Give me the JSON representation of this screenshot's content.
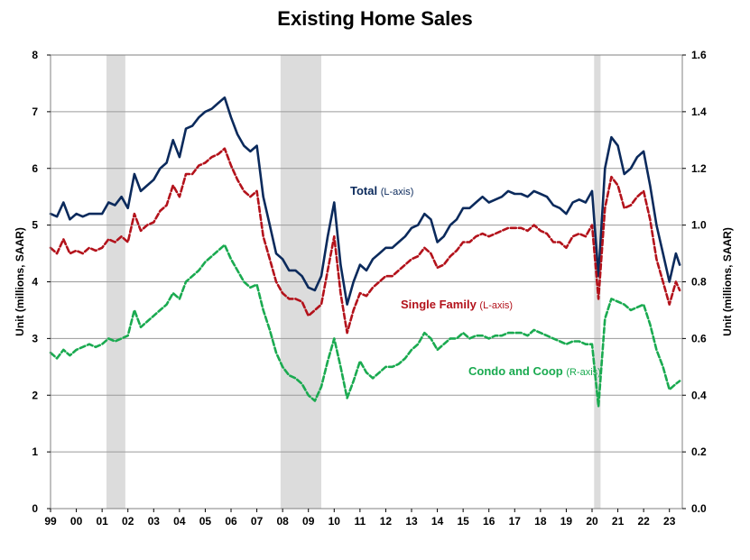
{
  "chart_data": {
    "type": "line",
    "title": "Existing Home Sales",
    "ylabel_left": "Unit (millions, SAAR)",
    "ylabel_right": "Unit (millions, SAAR)",
    "ylim_left": [
      0,
      8
    ],
    "ylim_right": [
      0.0,
      1.6
    ],
    "yticks_left": [
      "0",
      "1",
      "2",
      "3",
      "4",
      "5",
      "6",
      "7",
      "8"
    ],
    "yticks_right": [
      "0.0",
      "0.2",
      "0.4",
      "0.6",
      "0.8",
      "1.0",
      "1.2",
      "1.4",
      "1.6"
    ],
    "xlim": [
      1999.0,
      2023.5
    ],
    "xticks": [
      "99",
      "00",
      "01",
      "02",
      "03",
      "04",
      "05",
      "06",
      "07",
      "08",
      "09",
      "10",
      "11",
      "12",
      "13",
      "14",
      "15",
      "16",
      "17",
      "18",
      "19",
      "20",
      "21",
      "22",
      "23"
    ],
    "grid": "horizontal",
    "recessions": [
      [
        2001.17,
        2001.9
      ],
      [
        2007.92,
        2009.5
      ],
      [
        2020.08,
        2020.33
      ]
    ],
    "series": [
      {
        "name": "Total",
        "axis": "left",
        "color": "#0b2a5c",
        "style": "solid",
        "label": "Total",
        "label_sub": "(L-axis)",
        "x": [
          1999.0,
          1999.25,
          1999.5,
          1999.75,
          2000.0,
          2000.25,
          2000.5,
          2000.75,
          2001.0,
          2001.25,
          2001.5,
          2001.75,
          2002.0,
          2002.25,
          2002.5,
          2002.75,
          2003.0,
          2003.25,
          2003.5,
          2003.75,
          2004.0,
          2004.25,
          2004.5,
          2004.75,
          2005.0,
          2005.25,
          2005.5,
          2005.75,
          2006.0,
          2006.25,
          2006.5,
          2006.75,
          2007.0,
          2007.25,
          2007.5,
          2007.75,
          2008.0,
          2008.25,
          2008.5,
          2008.75,
          2009.0,
          2009.25,
          2009.5,
          2009.75,
          2010.0,
          2010.25,
          2010.5,
          2010.75,
          2011.0,
          2011.25,
          2011.5,
          2011.75,
          2012.0,
          2012.25,
          2012.5,
          2012.75,
          2013.0,
          2013.25,
          2013.5,
          2013.75,
          2014.0,
          2014.25,
          2014.5,
          2014.75,
          2015.0,
          2015.25,
          2015.5,
          2015.75,
          2016.0,
          2016.25,
          2016.5,
          2016.75,
          2017.0,
          2017.25,
          2017.5,
          2017.75,
          2018.0,
          2018.25,
          2018.5,
          2018.75,
          2019.0,
          2019.25,
          2019.5,
          2019.75,
          2020.0,
          2020.25,
          2020.5,
          2020.75,
          2021.0,
          2021.25,
          2021.5,
          2021.75,
          2022.0,
          2022.25,
          2022.5,
          2022.75,
          2023.0,
          2023.25,
          2023.4
        ],
        "values": [
          5.2,
          5.15,
          5.4,
          5.1,
          5.2,
          5.15,
          5.2,
          5.2,
          5.2,
          5.4,
          5.35,
          5.5,
          5.3,
          5.9,
          5.6,
          5.7,
          5.8,
          6.0,
          6.1,
          6.5,
          6.2,
          6.7,
          6.75,
          6.9,
          7.0,
          7.05,
          7.15,
          7.25,
          6.9,
          6.6,
          6.4,
          6.3,
          6.4,
          5.5,
          5.0,
          4.5,
          4.4,
          4.2,
          4.2,
          4.1,
          3.9,
          3.85,
          4.1,
          4.8,
          5.4,
          4.3,
          3.6,
          4.0,
          4.3,
          4.2,
          4.4,
          4.5,
          4.6,
          4.6,
          4.7,
          4.8,
          4.95,
          5.0,
          5.2,
          5.1,
          4.7,
          4.8,
          5.0,
          5.1,
          5.3,
          5.3,
          5.4,
          5.5,
          5.4,
          5.45,
          5.5,
          5.6,
          5.55,
          5.55,
          5.5,
          5.6,
          5.55,
          5.5,
          5.35,
          5.3,
          5.2,
          5.4,
          5.45,
          5.4,
          5.6,
          4.1,
          6.0,
          6.55,
          6.4,
          5.9,
          6.0,
          6.2,
          6.3,
          5.7,
          5.0,
          4.5,
          4.0,
          4.5,
          4.3
        ]
      },
      {
        "name": "Single Family",
        "axis": "left",
        "color": "#b3121b",
        "style": "dashed",
        "label": "Single Family",
        "label_sub": "(L-axis)",
        "x": [
          1999.0,
          1999.25,
          1999.5,
          1999.75,
          2000.0,
          2000.25,
          2000.5,
          2000.75,
          2001.0,
          2001.25,
          2001.5,
          2001.75,
          2002.0,
          2002.25,
          2002.5,
          2002.75,
          2003.0,
          2003.25,
          2003.5,
          2003.75,
          2004.0,
          2004.25,
          2004.5,
          2004.75,
          2005.0,
          2005.25,
          2005.5,
          2005.75,
          2006.0,
          2006.25,
          2006.5,
          2006.75,
          2007.0,
          2007.25,
          2007.5,
          2007.75,
          2008.0,
          2008.25,
          2008.5,
          2008.75,
          2009.0,
          2009.25,
          2009.5,
          2009.75,
          2010.0,
          2010.25,
          2010.5,
          2010.75,
          2011.0,
          2011.25,
          2011.5,
          2011.75,
          2012.0,
          2012.25,
          2012.5,
          2012.75,
          2013.0,
          2013.25,
          2013.5,
          2013.75,
          2014.0,
          2014.25,
          2014.5,
          2014.75,
          2015.0,
          2015.25,
          2015.5,
          2015.75,
          2016.0,
          2016.25,
          2016.5,
          2016.75,
          2017.0,
          2017.25,
          2017.5,
          2017.75,
          2018.0,
          2018.25,
          2018.5,
          2018.75,
          2019.0,
          2019.25,
          2019.5,
          2019.75,
          2020.0,
          2020.25,
          2020.5,
          2020.75,
          2021.0,
          2021.25,
          2021.5,
          2021.75,
          2022.0,
          2022.25,
          2022.5,
          2022.75,
          2023.0,
          2023.25,
          2023.4
        ],
        "values": [
          4.6,
          4.5,
          4.75,
          4.5,
          4.55,
          4.5,
          4.6,
          4.55,
          4.6,
          4.75,
          4.7,
          4.8,
          4.7,
          5.2,
          4.9,
          5.0,
          5.05,
          5.25,
          5.35,
          5.7,
          5.5,
          5.9,
          5.9,
          6.05,
          6.1,
          6.2,
          6.25,
          6.35,
          6.05,
          5.8,
          5.6,
          5.5,
          5.6,
          4.8,
          4.4,
          4.0,
          3.8,
          3.7,
          3.7,
          3.65,
          3.4,
          3.5,
          3.6,
          4.2,
          4.8,
          3.8,
          3.1,
          3.5,
          3.8,
          3.75,
          3.9,
          4.0,
          4.1,
          4.1,
          4.2,
          4.3,
          4.4,
          4.45,
          4.6,
          4.5,
          4.25,
          4.3,
          4.45,
          4.55,
          4.7,
          4.7,
          4.8,
          4.85,
          4.8,
          4.85,
          4.9,
          4.95,
          4.95,
          4.95,
          4.9,
          5.0,
          4.9,
          4.85,
          4.7,
          4.7,
          4.6,
          4.8,
          4.85,
          4.8,
          5.0,
          3.7,
          5.3,
          5.85,
          5.7,
          5.3,
          5.35,
          5.5,
          5.6,
          5.1,
          4.4,
          4.0,
          3.6,
          4.0,
          3.85
        ]
      },
      {
        "name": "Condo and Coop",
        "axis": "right",
        "color": "#1aaa50",
        "style": "dashed",
        "label": "Condo and Coop",
        "label_sub": "(R-axis)",
        "x": [
          1999.0,
          1999.25,
          1999.5,
          1999.75,
          2000.0,
          2000.25,
          2000.5,
          2000.75,
          2001.0,
          2001.25,
          2001.5,
          2001.75,
          2002.0,
          2002.25,
          2002.5,
          2002.75,
          2003.0,
          2003.25,
          2003.5,
          2003.75,
          2004.0,
          2004.25,
          2004.5,
          2004.75,
          2005.0,
          2005.25,
          2005.5,
          2005.75,
          2006.0,
          2006.25,
          2006.5,
          2006.75,
          2007.0,
          2007.25,
          2007.5,
          2007.75,
          2008.0,
          2008.25,
          2008.5,
          2008.75,
          2009.0,
          2009.25,
          2009.5,
          2009.75,
          2010.0,
          2010.25,
          2010.5,
          2010.75,
          2011.0,
          2011.25,
          2011.5,
          2011.75,
          2012.0,
          2012.25,
          2012.5,
          2012.75,
          2013.0,
          2013.25,
          2013.5,
          2013.75,
          2014.0,
          2014.25,
          2014.5,
          2014.75,
          2015.0,
          2015.25,
          2015.5,
          2015.75,
          2016.0,
          2016.25,
          2016.5,
          2016.75,
          2017.0,
          2017.25,
          2017.5,
          2017.75,
          2018.0,
          2018.25,
          2018.5,
          2018.75,
          2019.0,
          2019.25,
          2019.5,
          2019.75,
          2020.0,
          2020.25,
          2020.5,
          2020.75,
          2021.0,
          2021.25,
          2021.5,
          2021.75,
          2022.0,
          2022.25,
          2022.5,
          2022.75,
          2023.0,
          2023.25,
          2023.4
        ],
        "values": [
          0.55,
          0.53,
          0.56,
          0.54,
          0.56,
          0.57,
          0.58,
          0.57,
          0.58,
          0.6,
          0.59,
          0.6,
          0.61,
          0.7,
          0.64,
          0.66,
          0.68,
          0.7,
          0.72,
          0.76,
          0.74,
          0.8,
          0.82,
          0.84,
          0.87,
          0.89,
          0.91,
          0.93,
          0.88,
          0.84,
          0.8,
          0.78,
          0.79,
          0.7,
          0.63,
          0.55,
          0.5,
          0.47,
          0.46,
          0.44,
          0.4,
          0.38,
          0.43,
          0.52,
          0.6,
          0.5,
          0.39,
          0.45,
          0.52,
          0.48,
          0.46,
          0.48,
          0.5,
          0.5,
          0.51,
          0.53,
          0.56,
          0.58,
          0.62,
          0.6,
          0.56,
          0.58,
          0.6,
          0.6,
          0.62,
          0.6,
          0.61,
          0.61,
          0.6,
          0.61,
          0.61,
          0.62,
          0.62,
          0.62,
          0.61,
          0.63,
          0.62,
          0.61,
          0.6,
          0.59,
          0.58,
          0.59,
          0.59,
          0.58,
          0.58,
          0.36,
          0.67,
          0.74,
          0.73,
          0.72,
          0.7,
          0.71,
          0.72,
          0.65,
          0.56,
          0.5,
          0.42,
          0.44,
          0.45
        ]
      }
    ]
  }
}
